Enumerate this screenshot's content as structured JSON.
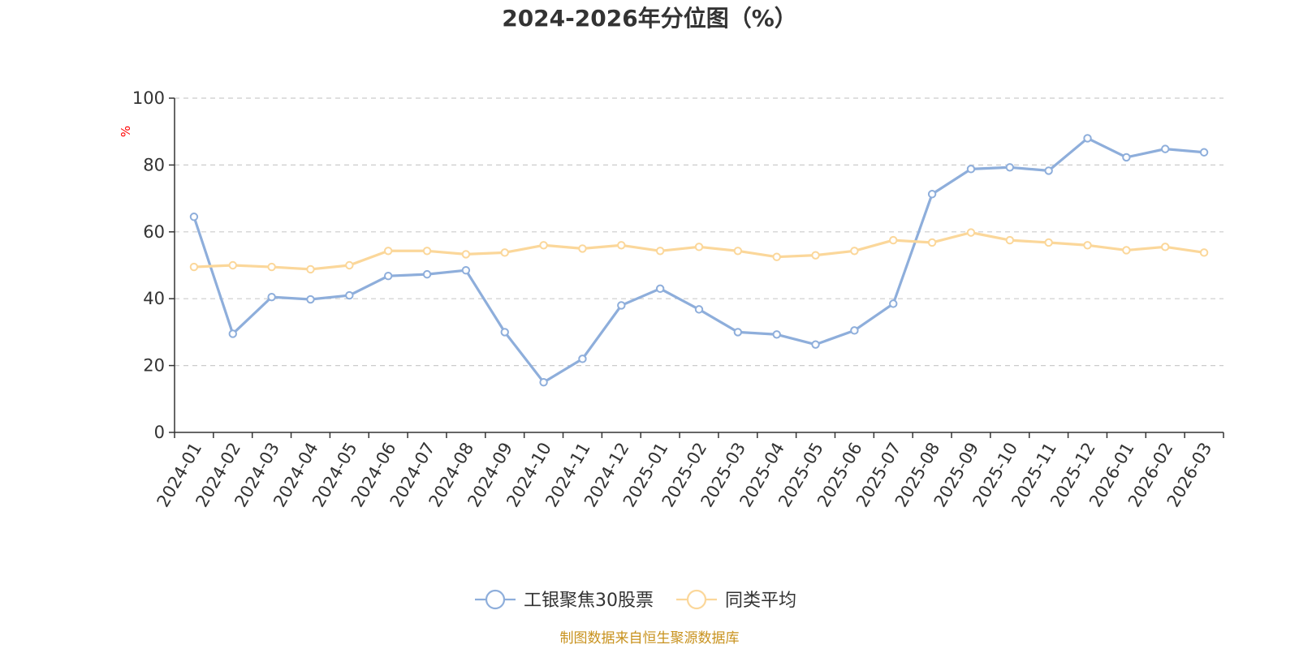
{
  "chart_data": {
    "type": "line",
    "title": "2024-2026年分位图（%）",
    "ylabel": "%",
    "xlabel": "",
    "ylim": [
      0,
      100
    ],
    "yticks": [
      0,
      20,
      40,
      60,
      80,
      100
    ],
    "grid": true,
    "legend_position": "bottom-center",
    "categories": [
      "2024-01",
      "2024-02",
      "2024-03",
      "2024-04",
      "2024-05",
      "2024-06",
      "2024-07",
      "2024-08",
      "2024-09",
      "2024-10",
      "2024-11",
      "2024-12",
      "2025-01",
      "2025-02",
      "2025-03",
      "2025-04",
      "2025-05",
      "2025-06",
      "2025-07",
      "2025-08",
      "2025-09",
      "2025-10",
      "2025-11",
      "2025-12",
      "2026-01",
      "2026-02",
      "2026-03"
    ],
    "series": [
      {
        "name": "工银聚焦30股票",
        "color": "#8eaedb",
        "values": [
          64.5,
          29.5,
          40.5,
          39.8,
          41.0,
          46.8,
          47.3,
          48.5,
          30.0,
          15.0,
          22.0,
          38.0,
          43.0,
          36.8,
          30.0,
          29.3,
          26.3,
          30.5,
          38.5,
          71.3,
          78.8,
          79.3,
          78.3,
          88.0,
          82.3,
          84.8,
          83.8
        ]
      },
      {
        "name": "同类平均",
        "color": "#fbd79a",
        "values": [
          49.5,
          50.0,
          49.5,
          48.8,
          50.0,
          54.3,
          54.3,
          53.3,
          53.8,
          56.0,
          55.0,
          56.0,
          54.3,
          55.5,
          54.3,
          52.5,
          53.0,
          54.3,
          57.5,
          56.8,
          59.8,
          57.5,
          56.8,
          56.0,
          54.5,
          55.5,
          53.8
        ]
      }
    ]
  },
  "source_text": "制图数据来自恒生聚源数据库",
  "colors": {
    "axis": "#333333",
    "grid": "#cccccc",
    "unit_label": "#ff0000",
    "source": "#c8921e"
  }
}
